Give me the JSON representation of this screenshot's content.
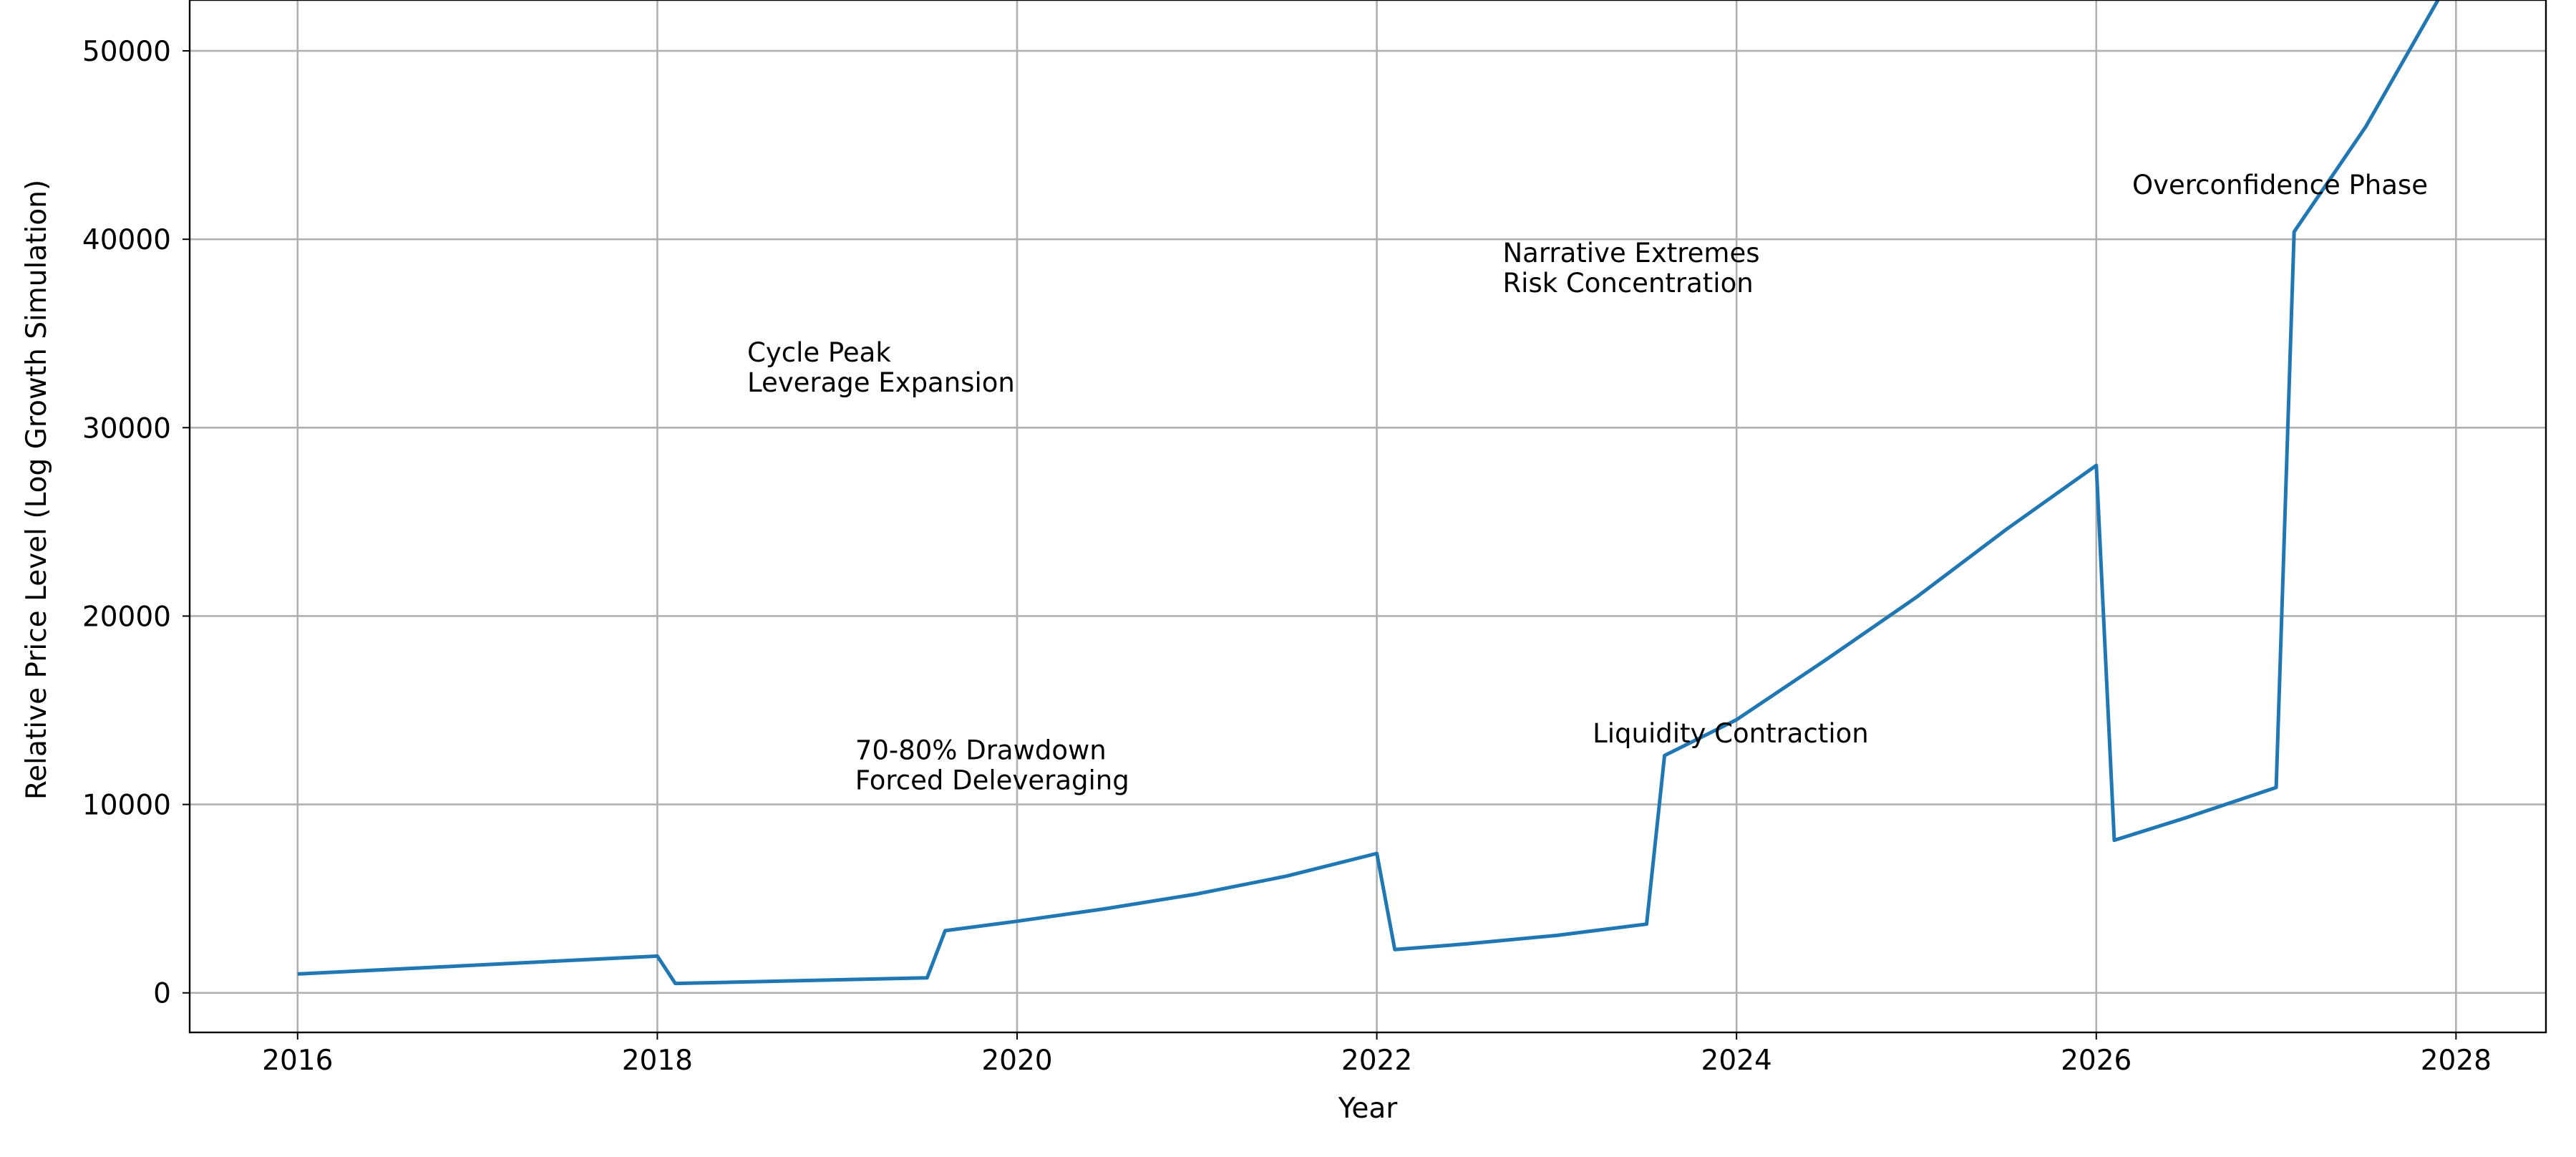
{
  "chart_data": {
    "type": "line",
    "title": "",
    "xlabel": "Year",
    "ylabel": "Relative Price Level (Log Growth Simulation)",
    "xlim": [
      2015.4,
      2028.5
    ],
    "ylim": [
      -2100,
      52700
    ],
    "grid": true,
    "legend": "none",
    "x_ticks": [
      2016,
      2018,
      2020,
      2022,
      2024,
      2026,
      2028
    ],
    "y_ticks": [
      0,
      10000,
      20000,
      30000,
      40000,
      50000
    ],
    "series": [
      {
        "color": "#1f77b4",
        "points": [
          [
            2016.0,
            1000
          ],
          [
            2018.0,
            1950
          ],
          [
            2018.1,
            500
          ],
          [
            2019.5,
            800
          ],
          [
            2019.6,
            3300
          ],
          [
            2020.0,
            3800
          ],
          [
            2020.5,
            4480
          ],
          [
            2021.0,
            5250
          ],
          [
            2021.5,
            6200
          ],
          [
            2022.0,
            7400
          ],
          [
            2022.1,
            2300
          ],
          [
            2022.5,
            2600
          ],
          [
            2023.0,
            3050
          ],
          [
            2023.5,
            3650
          ],
          [
            2023.6,
            12600
          ],
          [
            2024.0,
            14500
          ],
          [
            2024.5,
            17700
          ],
          [
            2025.0,
            21000
          ],
          [
            2025.5,
            24600
          ],
          [
            2026.0,
            28000
          ],
          [
            2026.1,
            8100
          ],
          [
            2026.5,
            9300
          ],
          [
            2027.0,
            10900
          ],
          [
            2027.1,
            40400
          ],
          [
            2027.5,
            46000
          ],
          [
            2027.9,
            52700
          ]
        ]
      }
    ],
    "annotations": [
      {
        "lines": [
          "Cycle Peak",
          "Leverage Expansion"
        ],
        "x": 2018.5,
        "y": 33500
      },
      {
        "lines": [
          "70-80% Drawdown",
          "Forced Deleveraging"
        ],
        "x": 2019.1,
        "y": 12400
      },
      {
        "lines": [
          "Narrative Extremes",
          "Risk Concentration"
        ],
        "x": 2022.7,
        "y": 38800
      },
      {
        "lines": [
          "Liquidity Contraction"
        ],
        "x": 2023.2,
        "y": 13300
      },
      {
        "lines": [
          "Overconfidence Phase"
        ],
        "x": 2026.2,
        "y": 42400
      }
    ]
  }
}
